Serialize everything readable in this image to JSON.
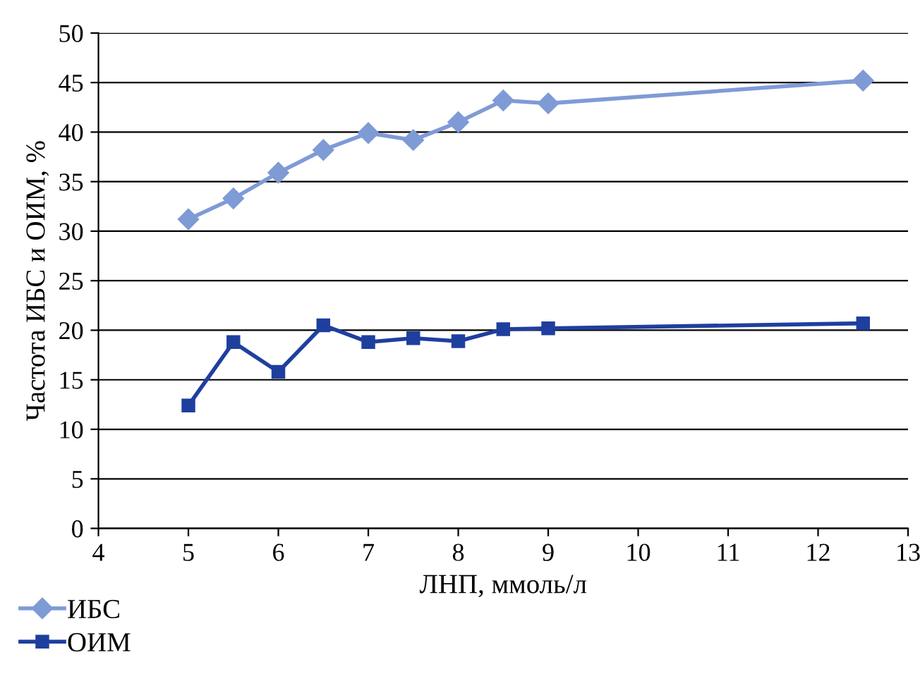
{
  "chart_data": {
    "type": "line",
    "xlabel": "ЛНП, ммоль/л",
    "ylabel": "Частота ИБС и ОИМ, %",
    "x": [
      5,
      5.5,
      6,
      6.5,
      7,
      7.5,
      8,
      8.5,
      9,
      12.5
    ],
    "series": [
      {
        "name": "ИБС",
        "color": "#7f9bd6",
        "marker": "diamond",
        "values": [
          31.2,
          33.3,
          35.9,
          38.2,
          39.9,
          39.2,
          41.0,
          43.2,
          42.9,
          45.2
        ]
      },
      {
        "name": "ОИМ",
        "color": "#1f3f9f",
        "marker": "square",
        "values": [
          12.4,
          18.8,
          15.8,
          20.5,
          18.8,
          19.2,
          18.9,
          20.1,
          20.2,
          20.7
        ]
      }
    ],
    "xlim": [
      4,
      13
    ],
    "xticks": [
      4,
      5,
      6,
      7,
      8,
      9,
      10,
      11,
      12,
      13
    ],
    "ylim": [
      0,
      50
    ],
    "yticks": [
      0,
      5,
      10,
      15,
      20,
      25,
      30,
      35,
      40,
      45,
      50
    ],
    "grid": "y",
    "legend": "bottom left",
    "line_style": "solid"
  }
}
